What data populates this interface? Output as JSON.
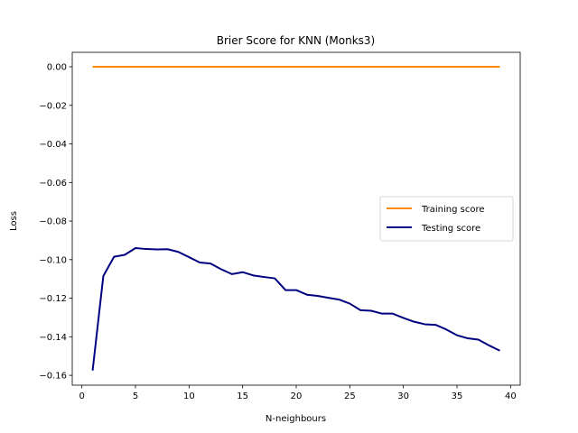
{
  "chart_data": {
    "type": "line",
    "title": "Brier Score for KNN (Monks3)",
    "xlabel": "N-neighbours",
    "ylabel": "Loss",
    "xlim": [
      -0.9,
      40.9
    ],
    "ylim": [
      -0.1651,
      0.0075
    ],
    "xticks": [
      0,
      5,
      10,
      15,
      20,
      25,
      30,
      35,
      40
    ],
    "xtick_labels": [
      "0",
      "5",
      "10",
      "15",
      "20",
      "25",
      "30",
      "35",
      "40"
    ],
    "yticks": [
      0.0,
      -0.02,
      -0.04,
      -0.06,
      -0.08,
      -0.1,
      -0.12,
      -0.14,
      -0.16
    ],
    "ytick_labels": [
      "0.00",
      "−0.02",
      "−0.04",
      "−0.06",
      "−0.08",
      "−0.10",
      "−0.12",
      "−0.14",
      "−0.16"
    ],
    "grid": false,
    "legend_position": "center-right",
    "series": [
      {
        "name": "Training score",
        "color": "#ff8c00",
        "x": [
          1,
          2,
          3,
          4,
          5,
          6,
          7,
          8,
          9,
          10,
          11,
          12,
          13,
          14,
          15,
          16,
          17,
          18,
          19,
          20,
          21,
          22,
          23,
          24,
          25,
          26,
          27,
          28,
          29,
          30,
          31,
          32,
          33,
          34,
          35,
          36,
          37,
          38,
          39
        ],
        "y": [
          0,
          0,
          0,
          0,
          0,
          0,
          0,
          0,
          0,
          0,
          0,
          0,
          0,
          0,
          0,
          0,
          0,
          0,
          0,
          0,
          0,
          0,
          0,
          0,
          0,
          0,
          0,
          0,
          0,
          0,
          0,
          0,
          0,
          0,
          0,
          0,
          0,
          0,
          0
        ]
      },
      {
        "name": "Testing score",
        "color": "#000080",
        "x": [
          1,
          2,
          3,
          4,
          5,
          6,
          7,
          8,
          9,
          10,
          11,
          12,
          13,
          14,
          15,
          16,
          17,
          18,
          19,
          20,
          21,
          22,
          23,
          24,
          25,
          26,
          27,
          28,
          29,
          30,
          31,
          32,
          33,
          34,
          35,
          36,
          37,
          38,
          39
        ],
        "y": [
          -0.1575,
          -0.1085,
          -0.0985,
          -0.0975,
          -0.094,
          -0.0945,
          -0.0947,
          -0.0946,
          -0.096,
          -0.0987,
          -0.1015,
          -0.102,
          -0.105,
          -0.1075,
          -0.1065,
          -0.1082,
          -0.109,
          -0.1097,
          -0.1158,
          -0.1158,
          -0.1182,
          -0.1188,
          -0.1198,
          -0.1207,
          -0.1228,
          -0.1262,
          -0.1265,
          -0.128,
          -0.128,
          -0.1302,
          -0.1322,
          -0.1335,
          -0.1338,
          -0.1362,
          -0.1392,
          -0.1408,
          -0.1415,
          -0.1445,
          -0.1472
        ]
      }
    ]
  }
}
